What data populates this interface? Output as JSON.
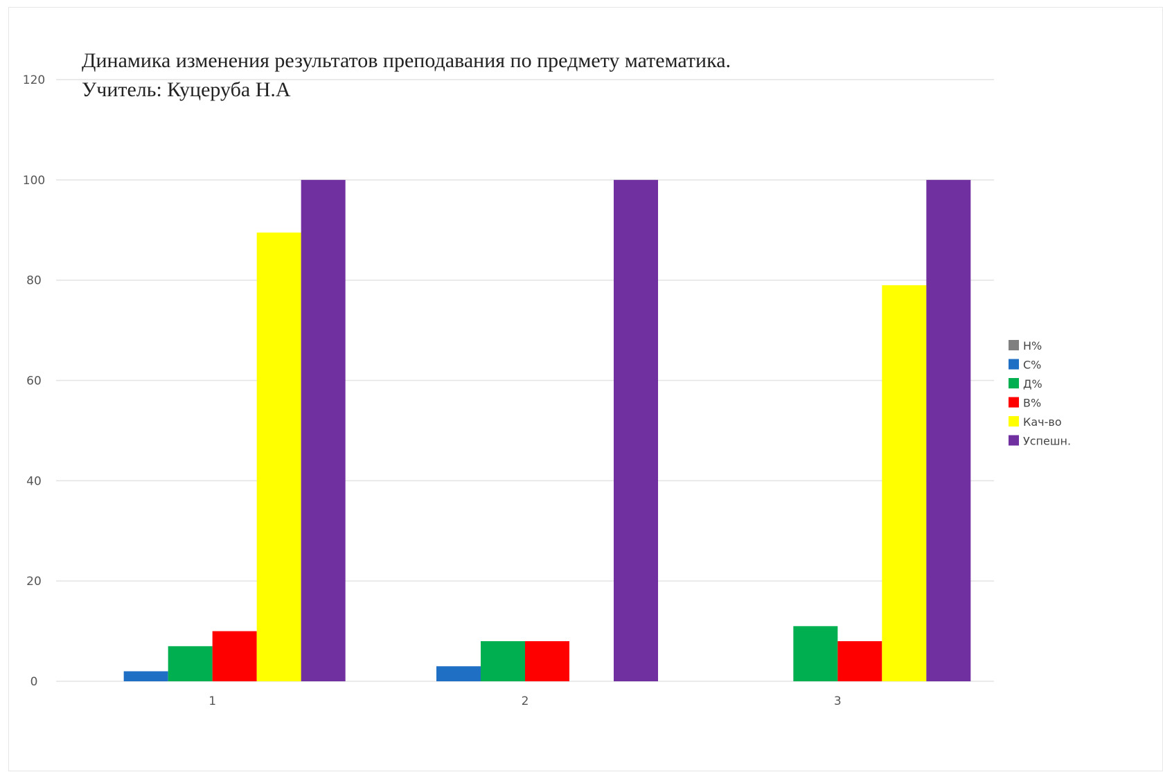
{
  "chart_data": {
    "type": "bar",
    "title_lines": [
      "Динамика изменения результатов преподавания по предмету математика.",
      "Учитель: Куцеруба Н.А"
    ],
    "xlabel": "",
    "ylabel": "",
    "categories": [
      "1",
      "2",
      "3"
    ],
    "ylim": [
      0,
      120
    ],
    "yticks": [
      0,
      20,
      40,
      60,
      80,
      100,
      120
    ],
    "grid": true,
    "legend_position": "right",
    "series": [
      {
        "name": "Н%",
        "color": "#808080",
        "values": [
          0,
          0,
          0
        ]
      },
      {
        "name": "С%",
        "color": "#1f6fc5",
        "values": [
          2,
          3,
          0
        ]
      },
      {
        "name": "Д%",
        "color": "#00b050",
        "values": [
          7,
          8,
          11
        ]
      },
      {
        "name": "В%",
        "color": "#ff0000",
        "values": [
          10,
          8,
          8
        ]
      },
      {
        "name": "Кач-во",
        "color": "#ffff00",
        "values": [
          89.5,
          0,
          79
        ]
      },
      {
        "name": "Успешн.",
        "color": "#7030a0",
        "values": [
          100,
          100,
          100
        ]
      }
    ]
  }
}
